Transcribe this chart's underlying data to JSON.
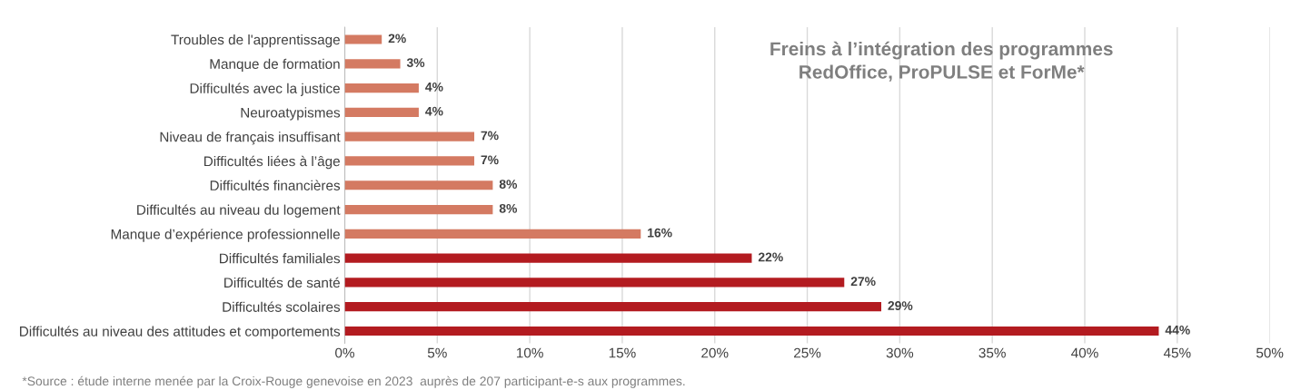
{
  "chart_data": {
    "type": "bar",
    "orientation": "horizontal",
    "title": "Freins à l’intégration des programmes\nRedOffice, ProPULSE et ForMe*",
    "categories": [
      "Troubles de l'apprentissage",
      "Manque de formation",
      "Difficultés avec la justice",
      "Neuroatypismes",
      "Niveau de français insuffisant",
      "Difficultés liées à l’âge",
      "Difficultés financières",
      "Difficultés au niveau du logement",
      "Manque d’expérience professionnelle",
      "Difficultés familiales",
      "Difficultés de santé",
      "Difficultés scolaires",
      "Difficultés au niveau des attitudes et comportements"
    ],
    "values": [
      2,
      3,
      4,
      4,
      7,
      7,
      8,
      8,
      16,
      22,
      27,
      29,
      44
    ],
    "colors": [
      "#d47a62",
      "#d47a62",
      "#d47a62",
      "#d47a62",
      "#d47a62",
      "#d47a62",
      "#d47a62",
      "#d47a62",
      "#d47a62",
      "#b31b20",
      "#b31b20",
      "#b31b20",
      "#b31b20"
    ],
    "value_labels": [
      "2%",
      "3%",
      "4%",
      "4%",
      "7%",
      "7%",
      "8%",
      "8%",
      "16%",
      "22%",
      "27%",
      "29%",
      "44%"
    ],
    "xlim": [
      0,
      50
    ],
    "xticks": [
      {
        "value": 0,
        "label": "0%"
      },
      {
        "value": 5,
        "label": "5%"
      },
      {
        "value": 10,
        "label": "10%"
      },
      {
        "value": 15,
        "label": "15%"
      },
      {
        "value": 20,
        "label": "20%"
      },
      {
        "value": 25,
        "label": "25%"
      },
      {
        "value": 30,
        "label": "30%"
      },
      {
        "value": 35,
        "label": "35%"
      },
      {
        "value": 40,
        "label": "40%"
      },
      {
        "value": 45,
        "label": "45%"
      },
      {
        "value": 50,
        "label": "50%"
      }
    ],
    "grid": "x",
    "legend": false,
    "annotations": [
      "*Source : étude interne menée par la Croix-Rouge genevoise en 2023  auprès de 207 participant-e-s aux programmes."
    ]
  }
}
